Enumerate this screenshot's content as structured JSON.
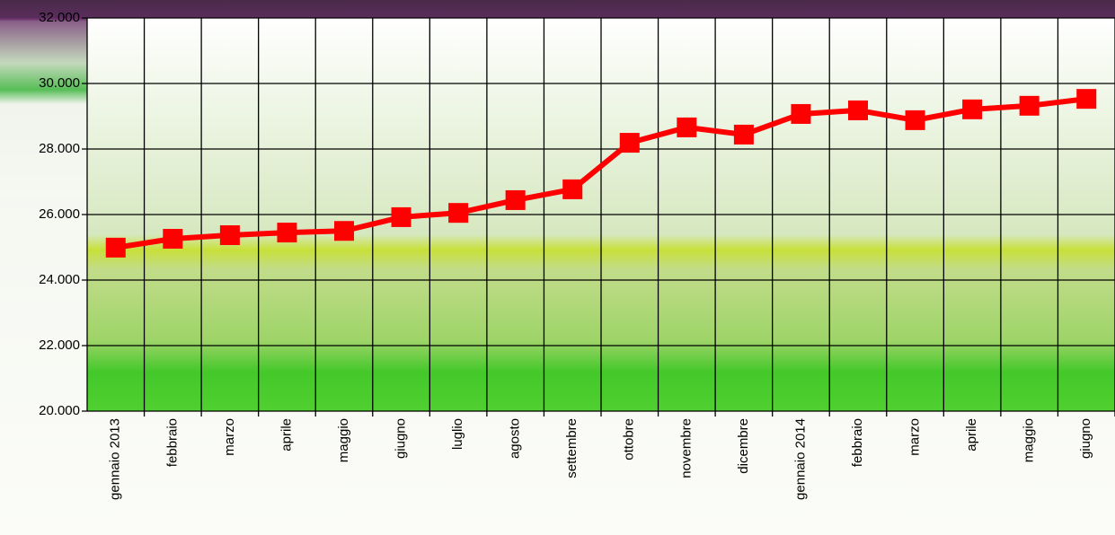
{
  "chart_data": {
    "type": "line",
    "categories": [
      "gennaio 2013",
      "febbraio",
      "marzo",
      "aprile",
      "maggio",
      "giugno",
      "luglio",
      "agosto",
      "settembre",
      "ottobre",
      "novembre",
      "dicembre",
      "gennaio 2014",
      "febbraio",
      "marzo",
      "aprile",
      "maggio",
      "giugno"
    ],
    "series": [
      {
        "color": "#ff0000",
        "values": [
          24990,
          25260,
          25370,
          25450,
          25500,
          25920,
          26050,
          26440,
          26770,
          28190,
          28660,
          28440,
          29070,
          29180,
          28880,
          29210,
          29320,
          29530
        ]
      }
    ],
    "ylim": [
      20000,
      32000
    ],
    "yticks": [
      {
        "value": 20000,
        "label": "20.000"
      },
      {
        "value": 22000,
        "label": "22.000"
      },
      {
        "value": 24000,
        "label": "24.000"
      },
      {
        "value": 26000,
        "label": "26.000"
      },
      {
        "value": 28000,
        "label": "28.000"
      },
      {
        "value": 30000,
        "label": "30.000"
      },
      {
        "value": 32000,
        "label": "32.000"
      }
    ],
    "grid": true
  }
}
